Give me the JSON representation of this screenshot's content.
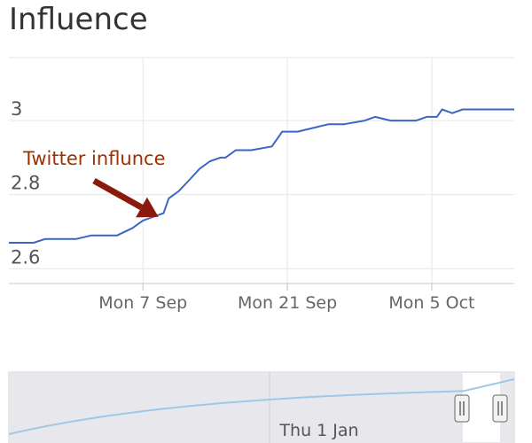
{
  "chart_data": {
    "type": "line",
    "title": "Influence",
    "xlabel": "",
    "ylabel": "",
    "x_tick_labels": [
      "Mon 7 Sep",
      "Mon 21 Sep",
      "Mon 5 Oct"
    ],
    "x_tick_days": [
      7,
      21,
      35
    ],
    "y_ticks": [
      2.6,
      2.8,
      3
    ],
    "y_tick_labels": [
      "2.6",
      "2.8",
      "3"
    ],
    "ylim": [
      2.56,
      3.17
    ],
    "xlim": [
      -6,
      43
    ],
    "grid": true,
    "legend": "none",
    "series": [
      {
        "color": "#3a66c4",
        "x": [
          -6,
          -3.6,
          -2.5,
          0.5,
          2,
          4.5,
          6,
          7,
          9,
          9.5,
          10.5,
          11.5,
          12.5,
          13.5,
          14.5,
          15,
          16,
          17.5,
          19.5,
          20.5,
          22,
          23.5,
          25,
          26.5,
          28.5,
          29.5,
          31,
          33.5,
          34.5,
          35.5,
          36,
          37,
          38,
          40,
          43
        ],
        "y": [
          2.67,
          2.67,
          2.68,
          2.68,
          2.69,
          2.69,
          2.71,
          2.73,
          2.75,
          2.79,
          2.81,
          2.84,
          2.87,
          2.89,
          2.9,
          2.9,
          2.92,
          2.92,
          2.93,
          2.97,
          2.97,
          2.98,
          2.99,
          2.99,
          3.0,
          3.01,
          3.0,
          3.0,
          3.01,
          3.01,
          3.03,
          3.02,
          3.03,
          3.03,
          3.03
        ]
      }
    ],
    "annotations": [
      {
        "text": "Twitter influnce",
        "color": "#a03000",
        "points_to": {
          "x": 8.5,
          "y": 2.74
        }
      }
    ],
    "navigator": {
      "label": "Thu 1 Jan",
      "line_color": "#9ec8e6"
    }
  }
}
